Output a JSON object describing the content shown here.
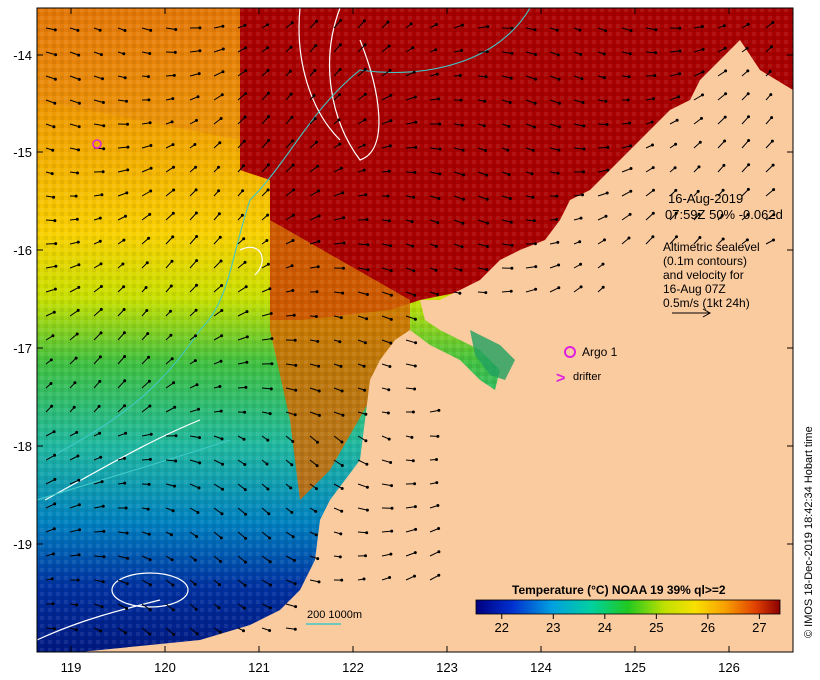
{
  "map": {
    "date_line1": "16-Aug-2019",
    "date_line2": "07:59Z  50% -0.062d",
    "legend_lines": [
      "Altimetric sealevel",
      "(0.1m contours)",
      "and velocity for",
      "16-Aug 07Z",
      "0.5m/s (1kt 24h)"
    ],
    "argo_label": "Argo 1",
    "drifter_label": "drifter",
    "drifter_symbol": ">",
    "depth_scale_label": "200  1000m",
    "credit": "© IMOS 18-Dec-2019 18:42:34 Hobart time",
    "x_ticks": [
      "119",
      "120",
      "121",
      "122",
      "123",
      "124",
      "125",
      "126"
    ],
    "y_ticks": [
      "-14",
      "-15",
      "-16",
      "-17",
      "-18",
      "-19"
    ],
    "colorbar": {
      "title": "Temperature (°C) NOAA 19 39% ql>=2",
      "ticks": [
        "22",
        "23",
        "24",
        "25",
        "26",
        "27"
      ],
      "range": [
        21.5,
        27.4
      ]
    },
    "colors": {
      "land": "#fbcba0",
      "hot": "#a80000",
      "argo": "#e020e0",
      "contour": "#ffffff",
      "isobath": "#40c8c8"
    }
  }
}
